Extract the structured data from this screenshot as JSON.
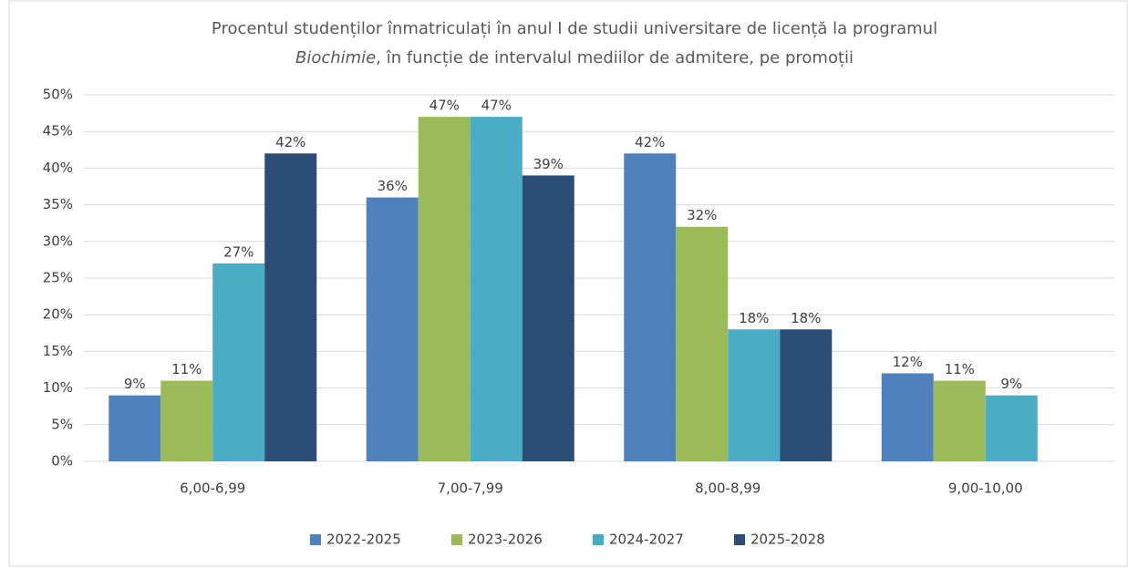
{
  "chart_data": {
    "type": "bar",
    "title": [
      "Procentul studenților înmatriculați în anul I de studii universitare de licență la programul",
      "Biochimie",
      ", în funcție de intervalul mediilor de admitere, pe promoții"
    ],
    "categories": [
      "6,00-6,99",
      "7,00-7,99",
      "8,00-8,99",
      "9,00-10,00"
    ],
    "series": [
      {
        "name": "2022-2025",
        "color": "#4f81bd",
        "values": [
          9,
          36,
          42,
          12
        ],
        "value_labels": [
          "9%",
          "36%",
          "42%",
          "12%"
        ]
      },
      {
        "name": "2023-2026",
        "color": "#9bbb59",
        "values": [
          11,
          47,
          32,
          11
        ],
        "value_labels": [
          "11%",
          "47%",
          "32%",
          "11%"
        ]
      },
      {
        "name": "2024-2027",
        "color": "#4bacc6",
        "values": [
          27,
          47,
          18,
          9
        ],
        "value_labels": [
          "27%",
          "47%",
          "18%",
          "9%"
        ]
      },
      {
        "name": "2025-2028",
        "color": "#2c4d75",
        "values": [
          42,
          39,
          18,
          null
        ],
        "value_labels": [
          "42%",
          "39%",
          "18%",
          null
        ]
      }
    ],
    "ylim": [
      0,
      50
    ],
    "yticks": [
      {
        "value": 0,
        "label": "0%"
      },
      {
        "value": 5,
        "label": "5%"
      },
      {
        "value": 10,
        "label": "10%"
      },
      {
        "value": 15,
        "label": "15%"
      },
      {
        "value": 20,
        "label": "20%"
      },
      {
        "value": 25,
        "label": "25%"
      },
      {
        "value": 30,
        "label": "30%"
      },
      {
        "value": 35,
        "label": "35%"
      },
      {
        "value": 40,
        "label": "40%"
      },
      {
        "value": 45,
        "label": "45%"
      },
      {
        "value": 50,
        "label": "50%"
      }
    ],
    "grid": true,
    "legend": "bottom"
  }
}
